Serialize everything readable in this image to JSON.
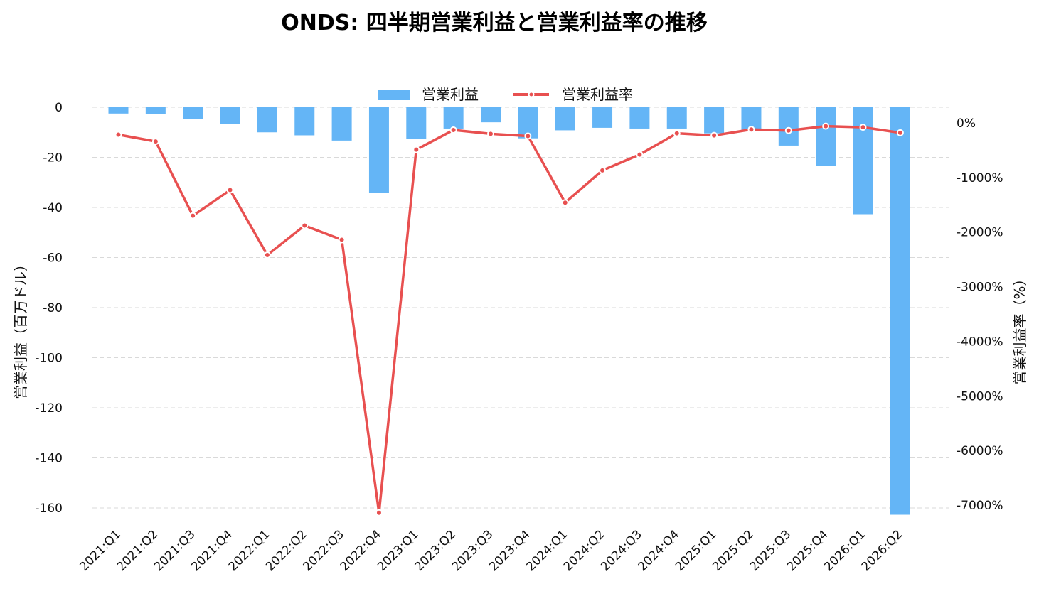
{
  "chart_data": {
    "type": "bar",
    "title": "ONDS: 四半期営業利益と営業利益率の推移",
    "ylabel": "営業利益（百万ドル）",
    "y2label": "営業利益率（%）",
    "ylim": [
      -160,
      0
    ],
    "y_ticks": [
      0,
      -20,
      -40,
      -60,
      -80,
      -100,
      -120,
      -140,
      -160
    ],
    "y2lim": [
      -7000,
      0
    ],
    "y2_ticks": [
      0,
      -1000,
      -2000,
      -3000,
      -4000,
      -5000,
      -6000,
      -7000
    ],
    "y2_tick_labels": [
      "0%",
      "-1000%",
      "-2000%",
      "-3000%",
      "-4000%",
      "-5000%",
      "-6000%",
      "-7000%"
    ],
    "grid": true,
    "legend_position": "top-center",
    "categories": [
      "2021:Q1",
      "2021:Q2",
      "2021:Q3",
      "2021:Q4",
      "2022:Q1",
      "2022:Q2",
      "2022:Q3",
      "2022:Q4",
      "2023:Q1",
      "2023:Q2",
      "2023:Q3",
      "2023:Q4",
      "2024:Q1",
      "2024:Q2",
      "2024:Q3",
      "2024:Q4",
      "2025:Q1",
      "2025:Q2",
      "2025:Q3",
      "2025:Q4",
      "2026:Q1",
      "2026:Q2"
    ],
    "series": [
      {
        "name": "営業利益",
        "kind": "bar",
        "axis": "left",
        "color": "#64b5f6",
        "values": [
          -2.5,
          -2.8,
          -4.8,
          -6.7,
          -10.0,
          -11.2,
          -13.3,
          -34.3,
          -12.5,
          -8.5,
          -6.0,
          -12.4,
          -9.2,
          -8.2,
          -8.5,
          -8.5,
          -10.4,
          -9.4,
          -15.3,
          -23.4,
          -42.7,
          -162.7
        ]
      },
      {
        "name": "営業利益率",
        "kind": "line",
        "axis": "right",
        "color": "#e85050",
        "values": [
          -215,
          -340,
          -1700,
          -1230,
          -2420,
          -1880,
          -2140,
          -7140,
          -490,
          -130,
          -200,
          -240,
          -1460,
          -870,
          -580,
          -190,
          -230,
          -120,
          -140,
          -60,
          -80,
          -180
        ]
      }
    ]
  }
}
